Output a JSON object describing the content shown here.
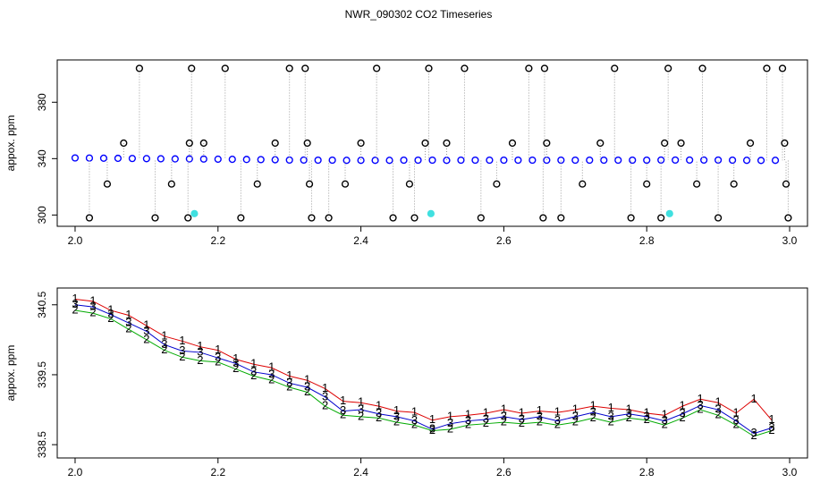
{
  "chart_data": [
    {
      "type": "scatter",
      "title": "NWR_090302  CO2 Timeseries",
      "ylabel": "appox. ppm",
      "xlim": [
        1.975,
        3.025
      ],
      "ylim": [
        292,
        410
      ],
      "xticks": [
        {
          "value": 2,
          "label": "2.0"
        },
        2.2,
        2.4,
        2.6,
        2.8,
        {
          "value": 3,
          "label": "3.0"
        }
      ],
      "yticks": [
        300,
        340,
        380
      ],
      "series": [
        {
          "color": "#0000ff",
          "fill": "none",
          "x": [
            2,
            2.02,
            2.04,
            2.06,
            2.08,
            2.1,
            2.12,
            2.14,
            2.16,
            2.18,
            2.2,
            2.22,
            2.24,
            2.26,
            2.28,
            2.3,
            2.32,
            2.34,
            2.36,
            2.38,
            2.4,
            2.42,
            2.44,
            2.46,
            2.48,
            2.5,
            2.52,
            2.54,
            2.56,
            2.58,
            2.6,
            2.62,
            2.64,
            2.66,
            2.68,
            2.7,
            2.72,
            2.74,
            2.76,
            2.78,
            2.8,
            2.82,
            2.84,
            2.86,
            2.88,
            2.9,
            2.92,
            2.94,
            2.96,
            2.98
          ],
          "values": [
            340.5,
            340.4,
            340.3,
            340.2,
            340.1,
            340.0,
            339.9,
            339.8,
            339.8,
            339.7,
            339.6,
            339.5,
            339.4,
            339.3,
            339.2,
            339.0,
            339.0,
            338.9,
            338.9,
            338.8,
            338.8,
            338.8,
            338.8,
            338.9,
            338.9,
            338.9,
            338.8,
            338.9,
            338.9,
            338.9,
            338.9,
            338.9,
            338.9,
            338.9,
            338.9,
            338.9,
            338.9,
            338.9,
            338.9,
            338.9,
            338.9,
            339.0,
            339.0,
            339.0,
            339.0,
            339.0,
            338.9,
            338.8,
            338.7,
            338.8
          ]
        },
        {
          "color": "#000000",
          "fill": "none",
          "connect": true,
          "x": [
            2.02,
            2.045,
            2.068,
            2.09,
            2.112,
            2.135,
            2.158,
            2.16,
            2.163,
            2.18,
            2.21,
            2.232,
            2.255,
            2.28,
            2.3,
            2.322,
            2.325,
            2.328,
            2.331,
            2.355,
            2.378,
            2.4,
            2.422,
            2.445,
            2.468,
            2.475,
            2.49,
            2.495,
            2.52,
            2.545,
            2.568,
            2.59,
            2.612,
            2.635,
            2.655,
            2.657,
            2.66,
            2.68,
            2.71,
            2.735,
            2.755,
            2.778,
            2.8,
            2.82,
            2.825,
            2.83,
            2.848,
            2.87,
            2.878,
            2.9,
            2.922,
            2.945,
            2.968,
            2.99,
            2.993,
            2.995,
            2.998
          ],
          "values": [
            298,
            322,
            351,
            404,
            298,
            322,
            298,
            351,
            404,
            351,
            404,
            298,
            322,
            351,
            404,
            404,
            351,
            322,
            298,
            298,
            322,
            351,
            404,
            298,
            322,
            298,
            351,
            404,
            351,
            404,
            298,
            322,
            351,
            404,
            298,
            404,
            351,
            298,
            322,
            351,
            404,
            298,
            322,
            298,
            351,
            404,
            351,
            322,
            404,
            298,
            322,
            351,
            404,
            404,
            351,
            322,
            298
          ]
        },
        {
          "color": "#40e0e0",
          "fill": "#40e0e0",
          "x": [
            2.167,
            2.498,
            2.832
          ],
          "values": [
            301,
            301,
            301
          ]
        }
      ]
    },
    {
      "type": "scatter",
      "ylabel": "appox. ppm",
      "xlim": [
        1.975,
        3.025
      ],
      "ylim": [
        338.31,
        340.74
      ],
      "xticks": [
        {
          "value": 2,
          "label": "2.0"
        },
        2.2,
        2.4,
        2.6,
        2.8,
        {
          "value": 3,
          "label": "3.0"
        }
      ],
      "yticks": [
        338.5,
        339.5,
        340.5
      ],
      "series": [
        {
          "marker": "1",
          "color": "#dd0000",
          "x": [
            2,
            2.025,
            2.05,
            2.075,
            2.1,
            2.125,
            2.15,
            2.175,
            2.2,
            2.225,
            2.25,
            2.275,
            2.3,
            2.325,
            2.35,
            2.375,
            2.4,
            2.425,
            2.45,
            2.475,
            2.5,
            2.525,
            2.55,
            2.575,
            2.6,
            2.625,
            2.65,
            2.675,
            2.7,
            2.725,
            2.75,
            2.775,
            2.8,
            2.825,
            2.85,
            2.875,
            2.9,
            2.925,
            2.95,
            2.975
          ],
          "values": [
            340.58,
            340.55,
            340.42,
            340.35,
            340.2,
            340.05,
            339.98,
            339.9,
            339.85,
            339.72,
            339.65,
            339.6,
            339.48,
            339.42,
            339.3,
            339.12,
            339.1,
            339.05,
            338.98,
            338.96,
            338.85,
            338.9,
            338.92,
            338.95,
            339.0,
            338.95,
            338.98,
            338.96,
            339.0,
            339.05,
            339.02,
            339.0,
            338.95,
            338.92,
            339.05,
            339.15,
            339.1,
            338.95,
            339.15,
            338.85
          ]
        },
        {
          "marker": "2",
          "color": "#00aa00",
          "x": [
            2,
            2.025,
            2.05,
            2.075,
            2.1,
            2.125,
            2.15,
            2.175,
            2.2,
            2.225,
            2.25,
            2.275,
            2.3,
            2.325,
            2.35,
            2.375,
            2.4,
            2.425,
            2.45,
            2.475,
            2.5,
            2.525,
            2.55,
            2.575,
            2.6,
            2.625,
            2.65,
            2.675,
            2.7,
            2.725,
            2.75,
            2.775,
            2.8,
            2.825,
            2.85,
            2.875,
            2.9,
            2.925,
            2.95,
            2.975
          ],
          "values": [
            340.42,
            340.38,
            340.3,
            340.15,
            340.0,
            339.85,
            339.75,
            339.7,
            339.68,
            339.58,
            339.48,
            339.42,
            339.32,
            339.25,
            339.05,
            338.92,
            338.9,
            338.88,
            338.82,
            338.78,
            338.7,
            338.72,
            338.78,
            338.8,
            338.82,
            338.8,
            338.82,
            338.78,
            338.82,
            338.88,
            338.82,
            338.88,
            338.85,
            338.78,
            338.88,
            339.0,
            338.92,
            338.78,
            338.62,
            338.7
          ]
        },
        {
          "marker": "3",
          "color": "#0000cc",
          "x": [
            2,
            2.025,
            2.05,
            2.075,
            2.1,
            2.125,
            2.15,
            2.175,
            2.2,
            2.225,
            2.25,
            2.275,
            2.3,
            2.325,
            2.35,
            2.375,
            2.4,
            2.425,
            2.45,
            2.475,
            2.5,
            2.525,
            2.55,
            2.575,
            2.6,
            2.625,
            2.65,
            2.675,
            2.7,
            2.725,
            2.75,
            2.775,
            2.8,
            2.825,
            2.85,
            2.875,
            2.9,
            2.925,
            2.95,
            2.975
          ],
          "values": [
            340.5,
            340.47,
            340.36,
            340.24,
            340.12,
            339.93,
            339.84,
            339.82,
            339.74,
            339.66,
            339.54,
            339.5,
            339.38,
            339.32,
            339.18,
            338.98,
            339.0,
            338.94,
            338.9,
            338.84,
            338.72,
            338.8,
            338.84,
            338.86,
            338.9,
            338.86,
            338.9,
            338.84,
            338.9,
            338.96,
            338.9,
            338.94,
            338.9,
            338.84,
            338.94,
            339.06,
            339.0,
            338.84,
            338.66,
            338.74
          ]
        }
      ]
    }
  ]
}
